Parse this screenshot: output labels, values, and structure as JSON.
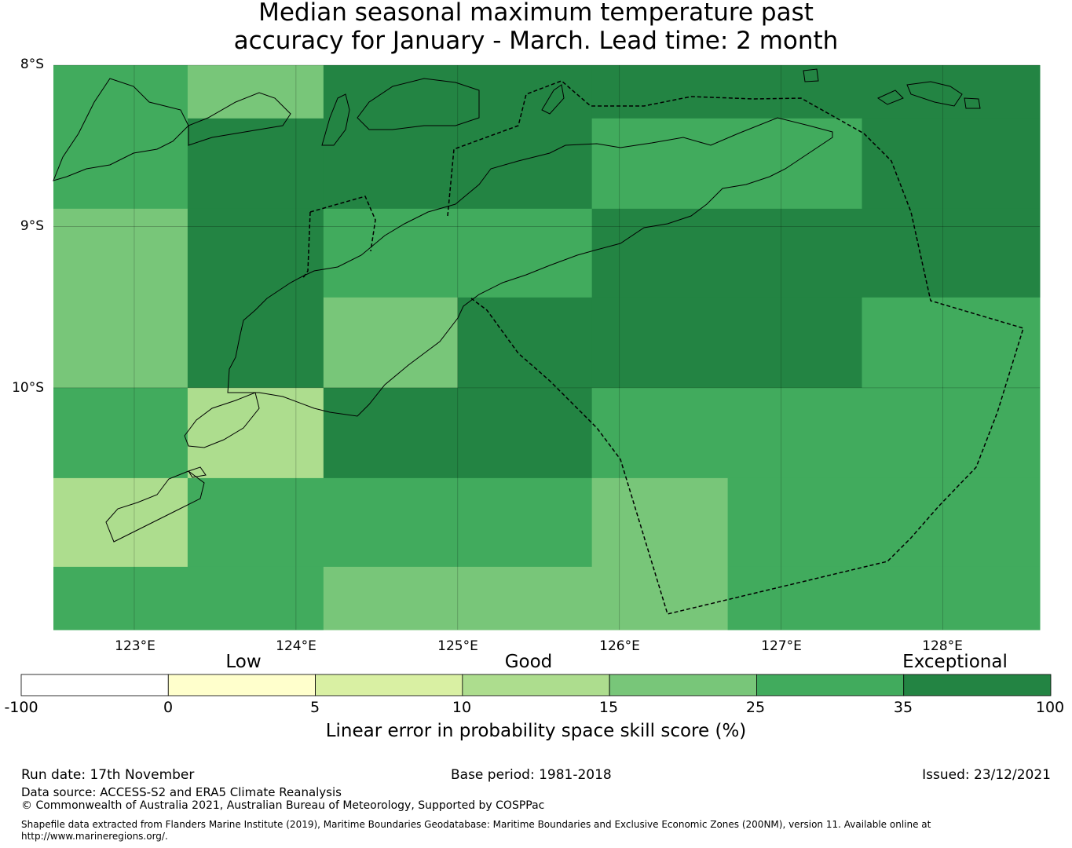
{
  "title": {
    "line1": "Median seasonal maximum temperature past",
    "line2": "accuracy for January - March. Lead time: 2 month"
  },
  "map": {
    "lat_labels": [
      "8°S",
      "9°S",
      "10°S"
    ],
    "lon_labels": [
      "123°E",
      "124°E",
      "125°E",
      "126°E",
      "127°E",
      "128°E"
    ],
    "lon_values": [
      123,
      124,
      125,
      126,
      127,
      128
    ],
    "lat_values": [
      -8,
      -9,
      -10
    ],
    "extent": {
      "lon_min": 122.5,
      "lon_max": 128.6,
      "lat_min": -11.5,
      "lat_max": -8.0
    },
    "skill_grid": {
      "description_of_values": "category index 0-6 (0=-100..0, 1=0..5, 2=5..10, 3=10..15, 4=15..25, 5=25..35, 6=35..100)",
      "cells": [
        {
          "lon0": 122.5,
          "lon1": 123.33,
          "lat0": -8.0,
          "lat1": -8.89,
          "cat": 5
        },
        {
          "lon0": 123.33,
          "lon1": 124.17,
          "lat0": -8.0,
          "lat1": -8.33,
          "cat": 4
        },
        {
          "lon0": 123.33,
          "lon1": 124.17,
          "lat0": -8.33,
          "lat1": -8.89,
          "cat": 6
        },
        {
          "lon0": 124.17,
          "lon1": 125.83,
          "lat0": -8.0,
          "lat1": -8.89,
          "cat": 6
        },
        {
          "lon0": 125.83,
          "lon1": 128.6,
          "lat0": -8.0,
          "lat1": -8.33,
          "cat": 6
        },
        {
          "lon0": 125.83,
          "lon1": 127.5,
          "lat0": -8.33,
          "lat1": -8.89,
          "cat": 5
        },
        {
          "lon0": 127.5,
          "lon1": 128.6,
          "lat0": -8.33,
          "lat1": -8.89,
          "cat": 6
        },
        {
          "lon0": 122.5,
          "lon1": 123.33,
          "lat0": -8.89,
          "lat1": -10.0,
          "cat": 4
        },
        {
          "lon0": 123.33,
          "lon1": 124.17,
          "lat0": -8.89,
          "lat1": -10.0,
          "cat": 6
        },
        {
          "lon0": 124.17,
          "lon1": 125.83,
          "lat0": -8.89,
          "lat1": -9.44,
          "cat": 5
        },
        {
          "lon0": 124.17,
          "lon1": 125.0,
          "lat0": -9.44,
          "lat1": -10.0,
          "cat": 4
        },
        {
          "lon0": 125.0,
          "lon1": 125.83,
          "lat0": -9.44,
          "lat1": -10.0,
          "cat": 6
        },
        {
          "lon0": 125.83,
          "lon1": 128.6,
          "lat0": -8.89,
          "lat1": -9.44,
          "cat": 6
        },
        {
          "lon0": 125.83,
          "lon1": 127.5,
          "lat0": -9.44,
          "lat1": -10.0,
          "cat": 6
        },
        {
          "lon0": 127.5,
          "lon1": 128.6,
          "lat0": -9.44,
          "lat1": -10.0,
          "cat": 5
        },
        {
          "lon0": 122.5,
          "lon1": 123.33,
          "lat0": -10.0,
          "lat1": -10.56,
          "cat": 5
        },
        {
          "lon0": 123.33,
          "lon1": 124.17,
          "lat0": -10.0,
          "lat1": -10.56,
          "cat": 3
        },
        {
          "lon0": 124.17,
          "lon1": 125.83,
          "lat0": -10.0,
          "lat1": -10.56,
          "cat": 6
        },
        {
          "lon0": 125.83,
          "lon1": 128.6,
          "lat0": -10.0,
          "lat1": -10.56,
          "cat": 5
        },
        {
          "lon0": 122.5,
          "lon1": 123.33,
          "lat0": -10.56,
          "lat1": -11.11,
          "cat": 3
        },
        {
          "lon0": 123.33,
          "lon1": 125.83,
          "lat0": -10.56,
          "lat1": -11.11,
          "cat": 5
        },
        {
          "lon0": 125.83,
          "lon1": 126.67,
          "lat0": -10.56,
          "lat1": -11.11,
          "cat": 4
        },
        {
          "lon0": 126.67,
          "lon1": 128.6,
          "lat0": -10.56,
          "lat1": -11.11,
          "cat": 5
        },
        {
          "lon0": 122.5,
          "lon1": 124.17,
          "lat0": -11.11,
          "lat1": -11.5,
          "cat": 5
        },
        {
          "lon0": 124.17,
          "lon1": 126.67,
          "lat0": -11.11,
          "lat1": -11.5,
          "cat": 4
        },
        {
          "lon0": 126.67,
          "lon1": 128.6,
          "lat0": -11.11,
          "lat1": -11.5,
          "cat": 5
        }
      ]
    }
  },
  "colorbar": {
    "ticks": [
      "-100",
      "0",
      "5",
      "10",
      "15",
      "25",
      "35",
      "100"
    ],
    "colors": [
      "#ffffff",
      "#ffffcc",
      "#d9f0a3",
      "#addd8e",
      "#78c679",
      "#41ab5d",
      "#238443"
    ],
    "categories": [
      "Low",
      "Good",
      "Exceptional"
    ],
    "label": "Linear error in probability space skill score (%)"
  },
  "footer": {
    "run_date": "Run date: 17th November",
    "base_period": "Base period: 1981-2018",
    "issued": "Issued: 23/12/2021",
    "data_source": "Data source: ACCESS-S2 and ERA5 Climate Reanalysis",
    "copyright": "© Commonwealth of Australia 2021, Australian Bureau of Meteorology, Supported by COSPPac",
    "shapefile_line1": "Shapefile data extracted from Flanders Marine Institute (2019), Maritime Boundaries Geodatabase: Maritime Boundaries and Exclusive Economic Zones (200NM), version 11. Available online at",
    "shapefile_line2": "http://www.marineregions.org/."
  }
}
